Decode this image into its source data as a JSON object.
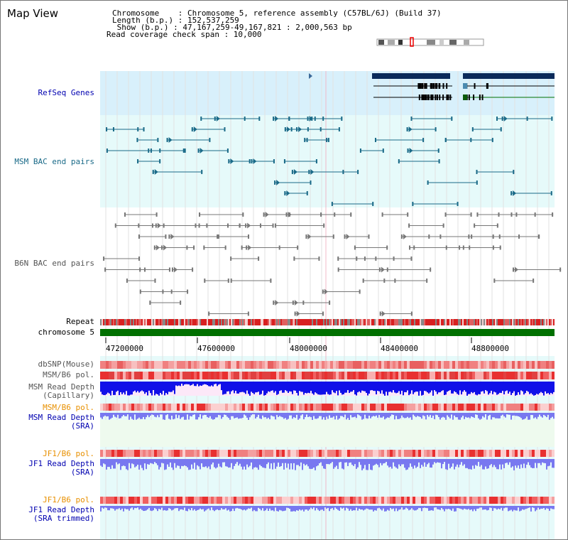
{
  "title": "Map View",
  "header": {
    "chromosome_line": "Chromosome    : Chromosome 5, reference assembly (C57BL/6J) (Build 37)",
    "length_line": "Length (b.p.) : 152,537,259",
    "show_line": " Show (b.p.) : 47,167,259-49,167,821 : 2,000,563 bp",
    "coverage_line": "Read coverage check span : 10,000"
  },
  "colors": {
    "panel_blue": "#d8f0fb",
    "panel_cyan": "#e6fafa",
    "msm_bac": "#1a6a88",
    "b6n_bac": "#777777",
    "chromosome": "#007000",
    "depth_dark": "#1010e8",
    "depth_light": "#7878f0",
    "red": "#e83030",
    "orange_label": "#e89000",
    "blue_label": "#0000b0"
  },
  "track_labels": {
    "refseq": "RefSeq Genes",
    "msm_bac": "MSM BAC end pairs",
    "b6n_bac": "B6N BAC end pairs",
    "repeat": "Repeat",
    "chromosome": "chromosome 5",
    "dbsnp": "dbSNP(Mouse)",
    "msm_b6_pol_1": "MSM/B6 pol.",
    "msm_read_depth_cap_1": "MSM Read Depth",
    "msm_read_depth_cap_2": "(Capillary)",
    "msm_b6_pol_2": "MSM/B6 pol.",
    "msm_read_depth_sra_1": "MSM Read Depth",
    "msm_read_depth_sra_2": "(SRA)",
    "jf1_b6_pol_1": "JF1/B6 pol.",
    "jf1_read_depth_sra_1": "JF1 Read Depth",
    "jf1_read_depth_sra_2": "(SRA)",
    "jf1_b6_pol_2": "JF1/B6 pol.",
    "jf1_read_depth_trim_1": "JF1 Read Depth",
    "jf1_read_depth_trim_2": "(SRA trimmed)"
  },
  "axis_ticks": [
    "47200000",
    "47600000",
    "48000000",
    "48400000",
    "48800000"
  ]
}
